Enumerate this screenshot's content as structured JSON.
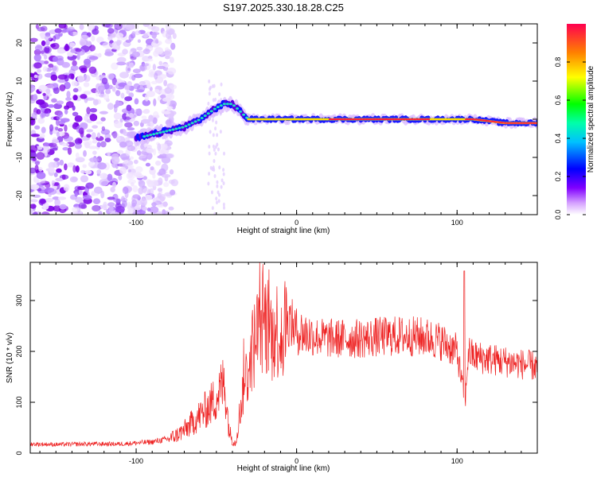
{
  "chart_data": [
    {
      "type": "heatmap",
      "title": "S197.2025.330.18.28.C25",
      "xlabel": "Height of straight line (km)",
      "ylabel": "Frequency (Hz)",
      "xlim": [
        -166,
        150
      ],
      "ylim": [
        -25,
        25
      ],
      "xticks": [
        -100,
        0,
        100
      ],
      "xtick_labels": [
        "-100",
        "0",
        "100"
      ],
      "yticks": [
        -20,
        -10,
        0,
        10,
        20
      ],
      "ytick_labels": [
        "-20",
        "-10",
        "0",
        "10",
        "20"
      ],
      "colorbar": {
        "label": "Normalized spectral amplitude",
        "range": [
          0,
          1
        ],
        "ticks": [
          0.0,
          0.2,
          0.4,
          0.6,
          0.8
        ],
        "tick_labels": [
          "0.0",
          "0.2",
          "0.4",
          "0.6",
          "0.8"
        ],
        "colors": [
          "#ffffff",
          "#d6a3ff",
          "#7a00e6",
          "#0000ff",
          "#00ffff",
          "#00ff40",
          "#ffff00",
          "#ff6600",
          "#ff0033"
        ]
      },
      "ridge": {
        "x": [
          -100,
          -90,
          -80,
          -70,
          -60,
          -50,
          -45,
          -40,
          -35,
          -30,
          -20,
          -10,
          0,
          10,
          20,
          40,
          60,
          80,
          90,
          100,
          110,
          130,
          150
        ],
        "y": [
          -5,
          -4,
          -3,
          -2,
          0,
          3,
          4,
          4,
          2,
          0,
          0,
          0,
          0,
          0,
          0,
          0,
          0,
          0,
          0,
          0,
          0,
          -1,
          -1
        ]
      }
    },
    {
      "type": "line",
      "title": "",
      "xlabel": "Height of straight line (km)",
      "ylabel": "SNR (10 * v/v)",
      "xlim": [
        -166,
        150
      ],
      "ylim": [
        0,
        375
      ],
      "xticks": [
        -100,
        0,
        100
      ],
      "xtick_labels": [
        "-100",
        "0",
        "100"
      ],
      "yticks": [
        0,
        100,
        200,
        300
      ],
      "ytick_labels": [
        "0",
        "100",
        "200",
        "300"
      ],
      "color": "#ee2222",
      "series": [
        {
          "name": "SNR",
          "x": [
            -166,
            -150,
            -130,
            -110,
            -90,
            -80,
            -75,
            -70,
            -65,
            -60,
            -55,
            -50,
            -45,
            -42,
            -40,
            -38,
            -35,
            -32,
            -30,
            -28,
            -25,
            -22,
            -20,
            -18,
            -15,
            -12,
            -10,
            -8,
            -5,
            -2,
            0,
            5,
            10,
            20,
            30,
            40,
            50,
            60,
            70,
            80,
            90,
            95,
            100,
            102,
            104,
            105,
            107,
            110,
            120,
            130,
            140,
            150
          ],
          "y": [
            18,
            17,
            18,
            18,
            22,
            28,
            35,
            45,
            60,
            75,
            90,
            110,
            140,
            45,
            25,
            20,
            90,
            150,
            160,
            200,
            230,
            250,
            260,
            250,
            235,
            245,
            240,
            250,
            260,
            250,
            240,
            235,
            230,
            225,
            225,
            225,
            228,
            230,
            230,
            228,
            220,
            210,
            200,
            160,
            120,
            95,
            200,
            190,
            185,
            180,
            175,
            170
          ]
        }
      ]
    }
  ]
}
